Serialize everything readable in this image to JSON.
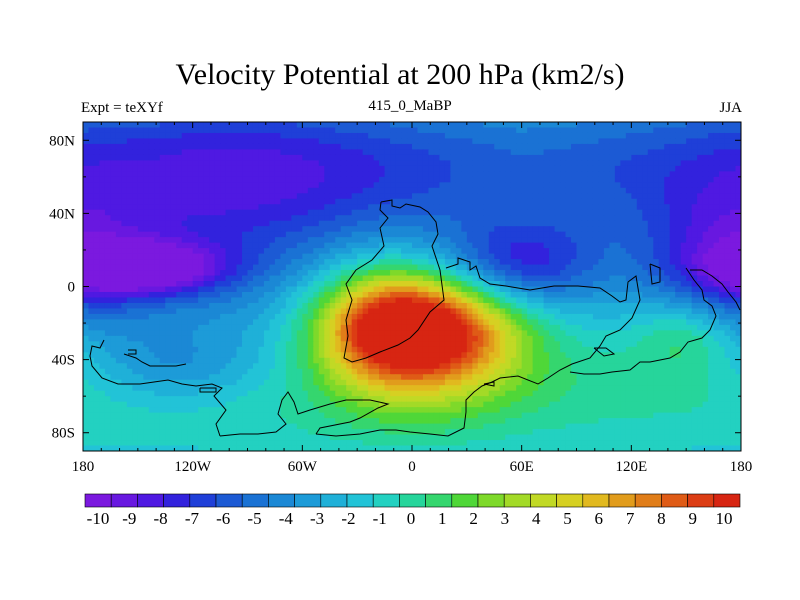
{
  "figure": {
    "title": "Velocity Potential at 200 hPa (km2/s)",
    "left_string": "Expt = teXYf",
    "center_string": "415_0_MaBP",
    "right_string": "JJA"
  },
  "chart_data": {
    "type": "heatmap",
    "projection": "cylindrical-equidistant",
    "variable": "Velocity Potential",
    "level": "200 hPa",
    "units": "km2/s",
    "xlim": [
      -180,
      180
    ],
    "ylim": [
      -90,
      90
    ],
    "x_ticks": [
      {
        "value": -180,
        "label": "180"
      },
      {
        "value": -120,
        "label": "120W"
      },
      {
        "value": -60,
        "label": "60W"
      },
      {
        "value": 0,
        "label": "0"
      },
      {
        "value": 60,
        "label": "60E"
      },
      {
        "value": 120,
        "label": "120E"
      },
      {
        "value": 180,
        "label": "180"
      }
    ],
    "y_ticks": [
      {
        "value": 80,
        "label": "80N"
      },
      {
        "value": 40,
        "label": "40N"
      },
      {
        "value": 0,
        "label": "0"
      },
      {
        "value": -40,
        "label": "40S"
      },
      {
        "value": -80,
        "label": "80S"
      }
    ],
    "colorbar": {
      "labels": [
        "-10",
        "-9",
        "-8",
        "-7",
        "-6",
        "-5",
        "-4",
        "-3",
        "-2",
        "-1",
        "0",
        "1",
        "2",
        "3",
        "4",
        "5",
        "6",
        "7",
        "8",
        "9",
        "10"
      ],
      "colors": [
        "#7b19df",
        "#6818e0",
        "#4f19e2",
        "#3222dd",
        "#1f3fd8",
        "#1c5ad4",
        "#1a72d4",
        "#1b88d5",
        "#1d9bd8",
        "#1fb0d8",
        "#22c3d7",
        "#23d1c1",
        "#26d59b",
        "#35d66e",
        "#4fd738",
        "#7ed92a",
        "#a3da27",
        "#c1d925",
        "#d6d022",
        "#e1b91f",
        "#e19c1c",
        "#e07d19",
        "#df5b16",
        "#dc3d14",
        "#d72512"
      ]
    },
    "fields": [
      {
        "lon": -145,
        "lat": 10,
        "value": -7.5,
        "sx": 30,
        "sy": 10
      },
      {
        "lon": -120,
        "lat": 32,
        "value": -3.5,
        "sx": 80,
        "sy": 40
      },
      {
        "lon": -120,
        "lat": 70,
        "value": -3,
        "sx": 90,
        "sy": 30
      },
      {
        "lon": 60,
        "lat": 12,
        "value": -5.5,
        "sx": 30,
        "sy": 18
      },
      {
        "lon": 170,
        "lat": 10,
        "value": -4.5,
        "sx": 30,
        "sy": 25
      },
      {
        "lon": 40,
        "lat": 65,
        "value": -3,
        "sx": 120,
        "sy": 25
      },
      {
        "lon": -130,
        "lat": -45,
        "value": -2,
        "sx": 30,
        "sy": 14
      },
      {
        "lon": 5,
        "lat": -22,
        "value": 12,
        "sx": 35,
        "sy": 20
      },
      {
        "lon": 10,
        "lat": -40,
        "value": 4,
        "sx": 40,
        "sy": 25
      },
      {
        "lon": -20,
        "lat": -20,
        "value": 4,
        "sx": 25,
        "sy": 25
      },
      {
        "lon": 150,
        "lat": -25,
        "value": 3,
        "sx": 20,
        "sy": 15
      },
      {
        "lon": 120,
        "lat": -55,
        "value": 2,
        "sx": 70,
        "sy": 25
      },
      {
        "lon": -60,
        "lat": -70,
        "value": 1.5,
        "sx": 80,
        "sy": 20
      }
    ]
  }
}
